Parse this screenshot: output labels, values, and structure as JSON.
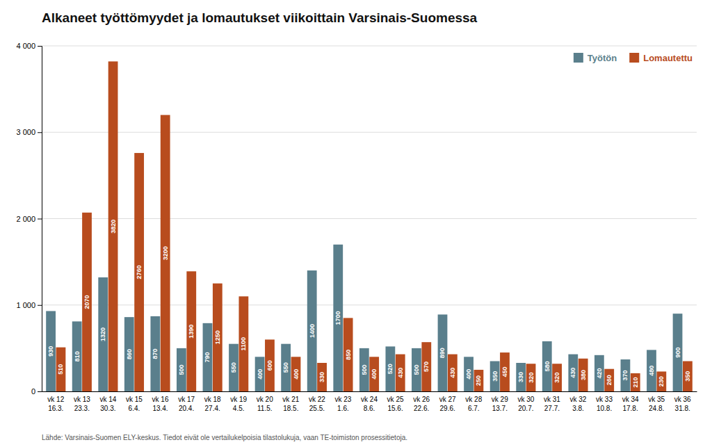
{
  "chart_data": {
    "type": "bar",
    "title": "Alkaneet työttömyydet ja lomautukset viikoittain Varsinais-Suomessa",
    "footnote": "Lähde: Varsinais-Suomen ELY-keskus. Tiedot eivät ole vertailukelpoisia tilastolukuja, vaan TE-toimiston prosessitietoja.",
    "categories": [
      "vk 12\n16.3.",
      "vk 13\n23.3.",
      "vk 14\n30.3.",
      "vk 15\n6.4.",
      "vk 16\n13.4.",
      "vk 17\n20.4.",
      "vk 18\n27.4.",
      "vk 19\n4.5.",
      "vk 20\n11.5.",
      "vk 21\n18.5.",
      "vk 22\n25.5.",
      "vk 23\n1.6.",
      "vk 24\n8.6.",
      "vk 25\n15.6.",
      "vk 26\n22.6.",
      "vk 27\n29.6.",
      "vk 28\n6.7.",
      "vk 29\n13.7.",
      "vk 30\n20.7.",
      "vk 31\n27.7.",
      "vk 32\n3.8.",
      "vk 33\n10.8.",
      "vk 34\n17.8.",
      "vk 35\n24.8.",
      "vk 36\n31.8."
    ],
    "series": [
      {
        "name": "Työtön",
        "color": "#5a7f8c",
        "values": [
          930,
          810,
          1320,
          860,
          870,
          500,
          790,
          550,
          400,
          550,
          1400,
          1700,
          500,
          520,
          500,
          890,
          400,
          350,
          330,
          580,
          430,
          420,
          370,
          480,
          900
        ]
      },
      {
        "name": "Lomautettu",
        "color": "#b84c1e",
        "values": [
          510,
          2070,
          3820,
          2760,
          3200,
          1390,
          1250,
          1100,
          600,
          400,
          330,
          850,
          400,
          430,
          570,
          430,
          250,
          450,
          320,
          320,
          380,
          260,
          210,
          230,
          350
        ]
      }
    ],
    "ylim": [
      0,
      4000
    ],
    "yticks": [
      0,
      {
        "value": 1000,
        "label": "1 000"
      },
      {
        "value": 2000,
        "label": "2 000"
      },
      {
        "value": 3000,
        "label": "3 000"
      },
      {
        "value": 4000,
        "label": "4 000"
      }
    ],
    "grid": true,
    "legend": "upper right",
    "data_labels": true
  }
}
